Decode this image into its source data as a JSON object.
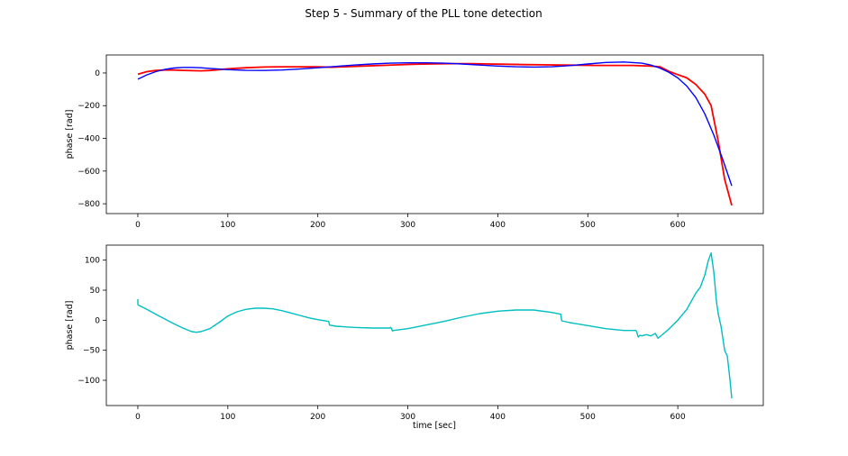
{
  "figure": {
    "suptitle": "Step 5 - Summary of the PLL tone detection"
  },
  "chart_data": [
    {
      "type": "line",
      "title": "",
      "xlabel": "",
      "ylabel": "phase [rad]",
      "xlim": [
        -35,
        695
      ],
      "ylim": [
        -860,
        110
      ],
      "xticks": [
        0,
        100,
        200,
        300,
        400,
        500,
        600
      ],
      "yticks": [
        0,
        -200,
        -400,
        -600,
        -800
      ],
      "grid": false,
      "series": [
        {
          "name": "",
          "color": "#ff0000",
          "x": [
            0,
            10,
            20,
            30,
            40,
            50,
            60,
            70,
            80,
            90,
            100,
            120,
            140,
            160,
            180,
            200,
            215,
            230,
            250,
            270,
            290,
            310,
            330,
            350,
            370,
            390,
            410,
            430,
            450,
            470,
            490,
            510,
            530,
            550,
            560,
            570,
            580,
            590,
            600,
            610,
            620,
            630,
            637,
            645,
            652,
            660
          ],
          "y": [
            -8,
            8,
            15,
            18,
            18,
            16,
            14,
            13,
            15,
            20,
            25,
            32,
            36,
            38,
            38,
            37,
            35,
            38,
            42,
            46,
            50,
            54,
            56,
            57,
            57,
            55,
            53,
            51,
            50,
            48,
            47,
            46,
            46,
            46,
            44,
            42,
            38,
            10,
            -10,
            -30,
            -70,
            -130,
            -200,
            -420,
            -650,
            -810
          ]
        },
        {
          "name": "",
          "color": "#0000ff",
          "x": [
            0,
            10,
            20,
            30,
            40,
            50,
            60,
            70,
            80,
            90,
            100,
            120,
            140,
            160,
            180,
            200,
            220,
            240,
            260,
            280,
            300,
            320,
            340,
            360,
            380,
            400,
            420,
            440,
            460,
            480,
            500,
            520,
            540,
            560,
            570,
            580,
            590,
            600,
            610,
            620,
            630,
            640,
            650,
            660
          ],
          "y": [
            -38,
            -12,
            8,
            22,
            30,
            34,
            34,
            32,
            28,
            24,
            20,
            16,
            15,
            18,
            24,
            32,
            40,
            48,
            55,
            60,
            62,
            62,
            60,
            55,
            48,
            42,
            38,
            36,
            38,
            45,
            55,
            64,
            67,
            60,
            48,
            30,
            5,
            -30,
            -80,
            -150,
            -250,
            -380,
            -530,
            -690
          ]
        }
      ]
    },
    {
      "type": "line",
      "title": "",
      "xlabel": "time [sec]",
      "ylabel": "phase [rad]",
      "xlim": [
        -35,
        695
      ],
      "ylim": [
        -142,
        125
      ],
      "xticks": [
        0,
        100,
        200,
        300,
        400,
        500,
        600
      ],
      "yticks": [
        100,
        50,
        0,
        -50,
        -100
      ],
      "grid": false,
      "series": [
        {
          "name": "",
          "color": "#00bfbf",
          "x": [
            0,
            0,
            1,
            10,
            20,
            30,
            40,
            50,
            60,
            65,
            70,
            80,
            90,
            100,
            110,
            120,
            130,
            140,
            150,
            160,
            170,
            180,
            190,
            200,
            212,
            213,
            220,
            240,
            260,
            280,
            281,
            282,
            283,
            284,
            300,
            320,
            340,
            360,
            380,
            400,
            420,
            440,
            460,
            470,
            471,
            480,
            500,
            520,
            540,
            553,
            554,
            556,
            558,
            560,
            565,
            570,
            575,
            578,
            582,
            590,
            600,
            610,
            620,
            625,
            630,
            634,
            637,
            640,
            643,
            645,
            648,
            650,
            652,
            655,
            658,
            660
          ],
          "y": [
            35,
            26,
            25,
            18,
            10,
            2,
            -6,
            -13,
            -19,
            -20,
            -19,
            -14,
            -4,
            7,
            14,
            18,
            20,
            20,
            19,
            16,
            12,
            8,
            4,
            1,
            -2,
            -8,
            -10,
            -12,
            -13,
            -13,
            -12,
            -15,
            -18,
            -17,
            -14,
            -8,
            -2,
            5,
            11,
            15,
            17,
            17,
            13,
            10,
            -1,
            -4,
            -9,
            -14,
            -17,
            -17,
            -18,
            -28,
            -25,
            -26,
            -24,
            -26,
            -22,
            -30,
            -25,
            -15,
            0,
            18,
            45,
            55,
            75,
            100,
            112,
            80,
            30,
            10,
            -10,
            -30,
            -50,
            -60,
            -100,
            -130
          ]
        }
      ]
    }
  ]
}
